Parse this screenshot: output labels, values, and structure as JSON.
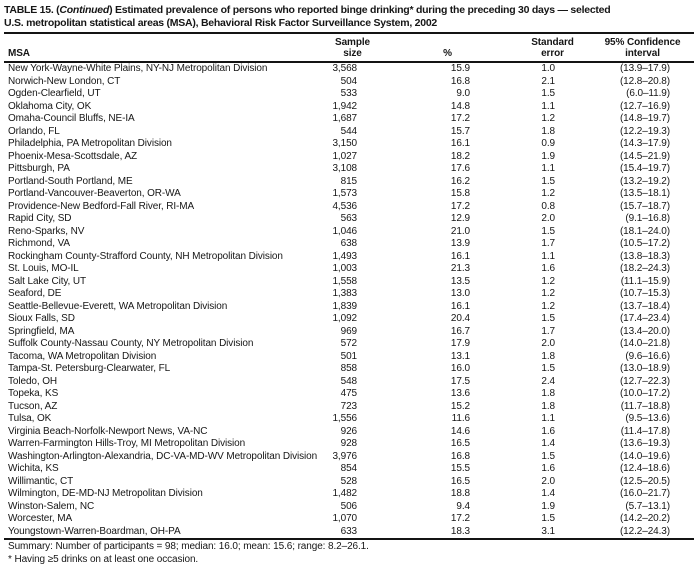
{
  "colors": {
    "ink": "#161616",
    "paper": "#ffffff"
  },
  "title": {
    "part1": "TABLE 15. (",
    "continued": "Continued",
    "part2": ") Estimated prevalence of persons who reported binge drinking* during the preceding 30 days — selected",
    "line2": "U.S. metropolitan statistical areas (MSA), Behavioral Risk Factor Surveillance System, 2002"
  },
  "table": {
    "headers": {
      "msa": "MSA",
      "sample_line1": "Sample",
      "sample_line2": "size",
      "pct": "%",
      "se_line1": "Standard",
      "se_line2": "error",
      "ci_line1": "95% Confidence",
      "ci_line2": "interval"
    },
    "rows": [
      {
        "msa": "New York-Wayne-White Plains, NY-NJ Metropolitan Division",
        "sample": "3,568",
        "pct": "15.9",
        "se": "1.0",
        "ci": "(13.9–17.9)"
      },
      {
        "msa": "Norwich-New London, CT",
        "sample": "504",
        "pct": "16.8",
        "se": "2.1",
        "ci": "(12.8–20.8)"
      },
      {
        "msa": "Ogden-Clearfield, UT",
        "sample": "533",
        "pct": "9.0",
        "se": "1.5",
        "ci": "(6.0–11.9)"
      },
      {
        "msa": "Oklahoma City, OK",
        "sample": "1,942",
        "pct": "14.8",
        "se": "1.1",
        "ci": "(12.7–16.9)"
      },
      {
        "msa": "Omaha-Council Bluffs, NE-IA",
        "sample": "1,687",
        "pct": "17.2",
        "se": "1.2",
        "ci": "(14.8–19.7)"
      },
      {
        "msa": "Orlando, FL",
        "sample": "544",
        "pct": "15.7",
        "se": "1.8",
        "ci": "(12.2–19.3)"
      },
      {
        "msa": "Philadelphia, PA Metropolitan Division",
        "sample": "3,150",
        "pct": "16.1",
        "se": "0.9",
        "ci": "(14.3–17.9)"
      },
      {
        "msa": "Phoenix-Mesa-Scottsdale, AZ",
        "sample": "1,027",
        "pct": "18.2",
        "se": "1.9",
        "ci": "(14.5–21.9)"
      },
      {
        "msa": "Pittsburgh, PA",
        "sample": "3,108",
        "pct": "17.6",
        "se": "1.1",
        "ci": "(15.4–19.7)"
      },
      {
        "msa": "Portland-South Portland, ME",
        "sample": "815",
        "pct": "16.2",
        "se": "1.5",
        "ci": "(13.2–19.2)"
      },
      {
        "msa": "Portland-Vancouver-Beaverton, OR-WA",
        "sample": "1,573",
        "pct": "15.8",
        "se": "1.2",
        "ci": "(13.5–18.1)"
      },
      {
        "msa": "Providence-New Bedford-Fall River, RI-MA",
        "sample": "4,536",
        "pct": "17.2",
        "se": "0.8",
        "ci": "(15.7–18.7)"
      },
      {
        "msa": "Rapid City, SD",
        "sample": "563",
        "pct": "12.9",
        "se": "2.0",
        "ci": "(9.1–16.8)"
      },
      {
        "msa": "Reno-Sparks, NV",
        "sample": "1,046",
        "pct": "21.0",
        "se": "1.5",
        "ci": "(18.1–24.0)"
      },
      {
        "msa": "Richmond, VA",
        "sample": "638",
        "pct": "13.9",
        "se": "1.7",
        "ci": "(10.5–17.2)"
      },
      {
        "msa": "Rockingham County-Strafford County, NH Metropolitan Division",
        "sample": "1,493",
        "pct": "16.1",
        "se": "1.1",
        "ci": "(13.8–18.3)"
      },
      {
        "msa": "St. Louis, MO-IL",
        "sample": "1,003",
        "pct": "21.3",
        "se": "1.6",
        "ci": "(18.2–24.3)"
      },
      {
        "msa": "Salt Lake City, UT",
        "sample": "1,558",
        "pct": "13.5",
        "se": "1.2",
        "ci": "(11.1–15.9)"
      },
      {
        "msa": "Seaford, DE",
        "sample": "1,383",
        "pct": "13.0",
        "se": "1.2",
        "ci": "(10.7–15.3)"
      },
      {
        "msa": "Seattle-Bellevue-Everett, WA Metropolitan Division",
        "sample": "1,839",
        "pct": "16.1",
        "se": "1.2",
        "ci": "(13.7–18.4)"
      },
      {
        "msa": "Sioux Falls, SD",
        "sample": "1,092",
        "pct": "20.4",
        "se": "1.5",
        "ci": "(17.4–23.4)"
      },
      {
        "msa": "Springfield, MA",
        "sample": "969",
        "pct": "16.7",
        "se": "1.7",
        "ci": "(13.4–20.0)"
      },
      {
        "msa": "Suffolk County-Nassau County, NY Metropolitan Division",
        "sample": "572",
        "pct": "17.9",
        "se": "2.0",
        "ci": "(14.0–21.8)"
      },
      {
        "msa": "Tacoma, WA Metropolitan Division",
        "sample": "501",
        "pct": "13.1",
        "se": "1.8",
        "ci": "(9.6–16.6)"
      },
      {
        "msa": "Tampa-St. Petersburg-Clearwater, FL",
        "sample": "858",
        "pct": "16.0",
        "se": "1.5",
        "ci": "(13.0–18.9)"
      },
      {
        "msa": "Toledo, OH",
        "sample": "548",
        "pct": "17.5",
        "se": "2.4",
        "ci": "(12.7–22.3)"
      },
      {
        "msa": "Topeka, KS",
        "sample": "475",
        "pct": "13.6",
        "se": "1.8",
        "ci": "(10.0–17.2)"
      },
      {
        "msa": "Tucson, AZ",
        "sample": "723",
        "pct": "15.2",
        "se": "1.8",
        "ci": "(11.7–18.8)"
      },
      {
        "msa": "Tulsa, OK",
        "sample": "1,556",
        "pct": "11.6",
        "se": "1.1",
        "ci": "(9.5–13.6)"
      },
      {
        "msa": "Virginia Beach-Norfolk-Newport News, VA-NC",
        "sample": "926",
        "pct": "14.6",
        "se": "1.6",
        "ci": "(11.4–17.8)"
      },
      {
        "msa": "Warren-Farmington Hills-Troy, MI Metropolitan Division",
        "sample": "928",
        "pct": "16.5",
        "se": "1.4",
        "ci": "(13.6–19.3)"
      },
      {
        "msa": "Washington-Arlington-Alexandria, DC-VA-MD-WV Metropolitan Division",
        "sample": "3,976",
        "pct": "16.8",
        "se": "1.5",
        "ci": "(14.0–19.6)"
      },
      {
        "msa": "Wichita, KS",
        "sample": "854",
        "pct": "15.5",
        "se": "1.6",
        "ci": "(12.4–18.6)"
      },
      {
        "msa": "Willimantic, CT",
        "sample": "528",
        "pct": "16.5",
        "se": "2.0",
        "ci": "(12.5–20.5)"
      },
      {
        "msa": "Wilmington, DE-MD-NJ Metropolitan Division",
        "sample": "1,482",
        "pct": "18.8",
        "se": "1.4",
        "ci": "(16.0–21.7)"
      },
      {
        "msa": "Winston-Salem, NC",
        "sample": "506",
        "pct": "9.4",
        "se": "1.9",
        "ci": "(5.7–13.1)"
      },
      {
        "msa": "Worcester, MA",
        "sample": "1,070",
        "pct": "17.2",
        "se": "1.5",
        "ci": "(14.2–20.2)"
      },
      {
        "msa": "Youngstown-Warren-Boardman, OH-PA",
        "sample": "633",
        "pct": "18.3",
        "se": "3.1",
        "ci": "(12.2–24.3)"
      }
    ]
  },
  "summary": "Summary: Number of participants = 98; median: 16.0; mean: 15.6; range: 8.2–26.1.",
  "footnote": "* Having ≥5 drinks on at least one occasion."
}
